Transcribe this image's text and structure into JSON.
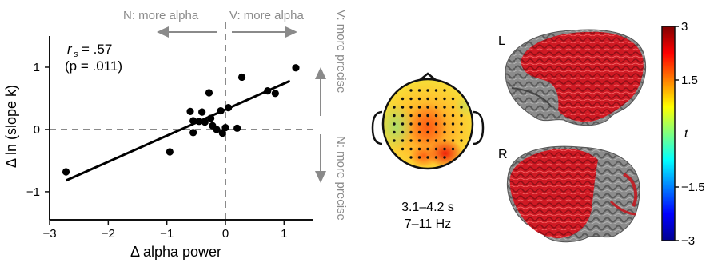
{
  "chart_data": [
    {
      "type": "scatter",
      "xlabel": "Δ  alpha power",
      "ylabel": "Δ  ln (slope k)",
      "xlim": [
        -3,
        1.5
      ],
      "ylim": [
        -1.45,
        1.5
      ],
      "xticks": [
        -3,
        -2,
        -1,
        0,
        1
      ],
      "xtick_labels": [
        "−3",
        "−2",
        "−1",
        "0",
        "1"
      ],
      "yticks": [
        -1,
        0,
        1
      ],
      "ytick_labels": [
        "−1",
        "0",
        "1"
      ],
      "stat_line1_lhs": "r",
      "stat_line1_sub": "s",
      "stat_line1_rhs": "= .57",
      "stat_line2": "(p = .011)",
      "points": [
        [
          -2.72,
          -0.68
        ],
        [
          -0.95,
          -0.36
        ],
        [
          -0.6,
          0.29
        ],
        [
          -0.55,
          0.14
        ],
        [
          -0.55,
          -0.05
        ],
        [
          -0.45,
          0.13
        ],
        [
          -0.4,
          0.28
        ],
        [
          -0.35,
          0.12
        ],
        [
          -0.28,
          0.59
        ],
        [
          -0.25,
          0.18
        ],
        [
          -0.22,
          0.06
        ],
        [
          -0.15,
          0.0
        ],
        [
          -0.08,
          0.3
        ],
        [
          -0.05,
          -0.06
        ],
        [
          0.0,
          0.03
        ],
        [
          0.05,
          0.35
        ],
        [
          0.2,
          0.02
        ],
        [
          0.28,
          0.84
        ],
        [
          0.72,
          0.62
        ],
        [
          0.85,
          0.58
        ],
        [
          1.2,
          0.99
        ]
      ],
      "fit_line": [
        [
          -2.72,
          -0.82
        ],
        [
          1.1,
          0.78
        ]
      ],
      "zero_lines": true,
      "arrows": {
        "left": "N: more alpha",
        "right": "V: more alpha",
        "up": "V: more precise",
        "down": "N: more precise"
      }
    }
  ],
  "topomap": {
    "time_label": "3.1–4.2 s",
    "freq_label": "7–11 Hz"
  },
  "brains": {
    "left_label": "L",
    "right_label": "R"
  },
  "colorbar": {
    "label": "t",
    "ticks": [
      "3",
      "1.5",
      "−1.5",
      "−3"
    ],
    "tick_values": [
      3,
      1.5,
      -1.5,
      -3
    ],
    "range": [
      -3,
      3
    ]
  }
}
